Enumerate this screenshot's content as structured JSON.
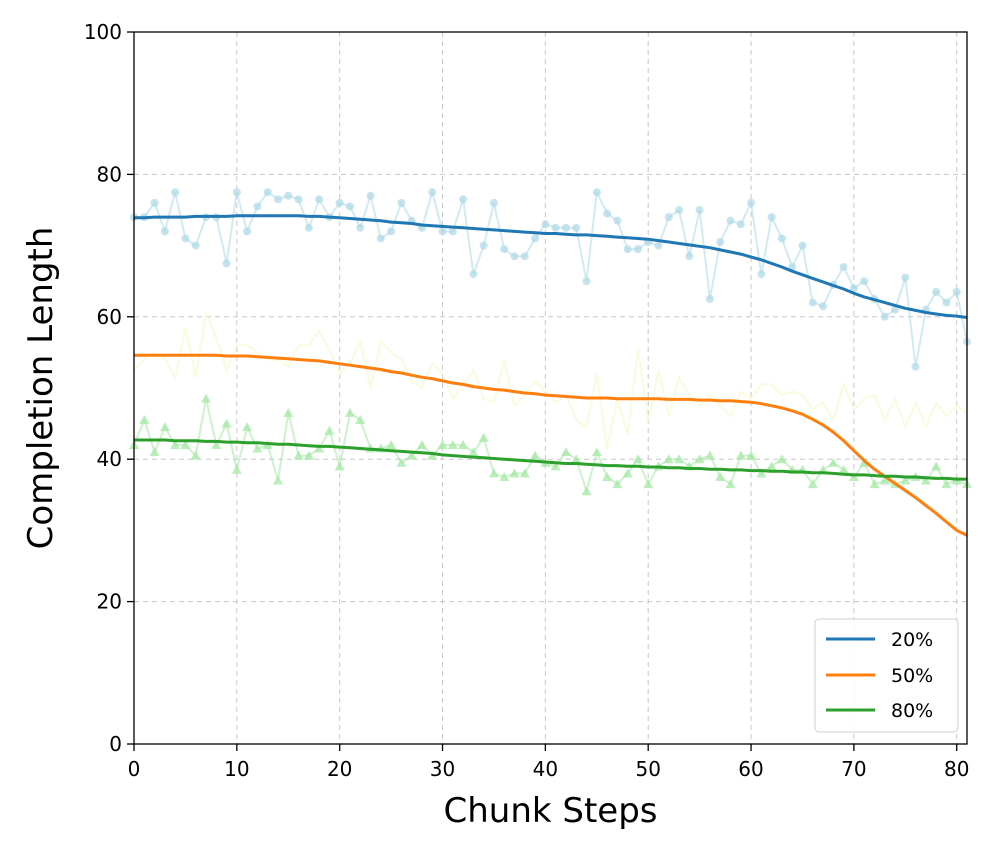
{
  "chart_data": {
    "type": "line",
    "title": "",
    "xlabel": "Chunk Steps",
    "ylabel": "Completion Length",
    "xlim": [
      0,
      81
    ],
    "ylim": [
      0,
      100
    ],
    "xticks": [
      "0",
      "10",
      "20",
      "30",
      "40",
      "50",
      "60",
      "70",
      "80"
    ],
    "yticks": [
      "0",
      "20",
      "40",
      "60",
      "80",
      "100"
    ],
    "grid": true,
    "legend_position": "lower-right",
    "x": [
      0,
      1,
      2,
      3,
      4,
      5,
      6,
      7,
      8,
      9,
      10,
      11,
      12,
      13,
      14,
      15,
      16,
      17,
      18,
      19,
      20,
      21,
      22,
      23,
      24,
      25,
      26,
      27,
      28,
      29,
      30,
      31,
      32,
      33,
      34,
      35,
      36,
      37,
      38,
      39,
      40,
      41,
      42,
      43,
      44,
      45,
      46,
      47,
      48,
      49,
      50,
      51,
      52,
      53,
      54,
      55,
      56,
      57,
      58,
      59,
      60,
      61,
      62,
      63,
      64,
      65,
      66,
      67,
      68,
      69,
      70,
      71,
      72,
      73,
      74,
      75,
      76,
      77,
      78,
      79,
      80,
      81
    ],
    "series": [
      {
        "name": "20%",
        "color": "#1f77b4",
        "raw_color": "#add8e6",
        "marker": "circle",
        "raw": [
          74,
          74,
          76,
          72,
          77.5,
          71,
          70,
          74,
          74,
          67.5,
          77.5,
          72,
          75.5,
          77.5,
          76.5,
          77,
          76.5,
          72.5,
          76.5,
          74,
          76,
          75.5,
          72.5,
          77,
          71,
          72,
          76,
          73.5,
          72.5,
          77.5,
          72,
          72,
          76.5,
          66,
          70,
          76,
          69.5,
          68.5,
          68.5,
          71,
          73,
          72.5,
          72.5,
          72.5,
          65,
          77.5,
          74.5,
          73.5,
          69.5,
          69.5,
          70.5,
          70,
          74,
          75,
          68.5,
          75,
          62.5,
          70.5,
          73.5,
          73,
          76,
          66,
          74,
          71,
          67,
          70,
          62,
          61.5,
          64.5,
          67,
          64,
          65,
          62.5,
          60,
          61,
          65.5,
          53,
          61,
          63.5,
          62,
          63.5,
          56.5
        ],
        "smooth": [
          73.9,
          73.9,
          74.0,
          74.0,
          74.0,
          74.0,
          74.1,
          74.1,
          74.1,
          74.1,
          74.2,
          74.2,
          74.2,
          74.2,
          74.2,
          74.2,
          74.2,
          74.1,
          74.1,
          74.0,
          73.9,
          73.8,
          73.7,
          73.6,
          73.5,
          73.3,
          73.2,
          73.1,
          72.9,
          72.8,
          72.7,
          72.6,
          72.5,
          72.4,
          72.3,
          72.2,
          72.1,
          72.0,
          71.9,
          71.8,
          71.7,
          71.7,
          71.6,
          71.5,
          71.5,
          71.4,
          71.3,
          71.2,
          71.1,
          71.0,
          70.9,
          70.7,
          70.5,
          70.3,
          70.1,
          69.9,
          69.7,
          69.4,
          69.1,
          68.8,
          68.4,
          68.0,
          67.5,
          67.0,
          66.4,
          65.9,
          65.4,
          64.9,
          64.4,
          63.9,
          63.3,
          62.8,
          62.4,
          62.0,
          61.6,
          61.2,
          60.9,
          60.6,
          60.4,
          60.2,
          60.1,
          59.9
        ]
      },
      {
        "name": "50%",
        "color": "#ff7f0e",
        "raw_color": "#f4f7c4",
        "marker": "none",
        "raw": [
          52.5,
          54,
          55,
          54,
          51.5,
          58.5,
          51.5,
          60.5,
          57,
          52.5,
          56,
          56,
          55,
          54,
          54,
          53,
          56,
          56,
          58,
          55.5,
          52,
          53.5,
          56.5,
          50,
          56.5,
          55,
          54,
          51,
          50,
          53.5,
          52,
          48.5,
          50.5,
          52.5,
          48.5,
          48,
          54,
          47.5,
          49,
          51,
          49.5,
          48,
          49,
          45.5,
          44.5,
          52,
          41.5,
          48.5,
          43.5,
          55.5,
          45,
          52.5,
          46,
          51.5,
          49,
          47.5,
          49,
          47.5,
          46,
          49.5,
          48.5,
          50.5,
          50.5,
          49,
          49.5,
          49,
          47,
          48,
          45.5,
          50.5,
          47,
          48.5,
          49,
          45.5,
          48.5,
          44.5,
          48,
          44.5,
          48,
          46,
          47.5,
          46.5
        ],
        "smooth": [
          54.6,
          54.6,
          54.6,
          54.6,
          54.6,
          54.6,
          54.6,
          54.6,
          54.6,
          54.5,
          54.5,
          54.5,
          54.4,
          54.3,
          54.2,
          54.1,
          54.0,
          53.9,
          53.8,
          53.6,
          53.4,
          53.2,
          53.0,
          52.8,
          52.6,
          52.3,
          52.1,
          51.8,
          51.5,
          51.3,
          51.0,
          50.7,
          50.5,
          50.2,
          50.0,
          49.8,
          49.7,
          49.5,
          49.3,
          49.2,
          49.0,
          48.9,
          48.8,
          48.7,
          48.6,
          48.6,
          48.6,
          48.5,
          48.5,
          48.5,
          48.5,
          48.5,
          48.4,
          48.4,
          48.4,
          48.3,
          48.3,
          48.2,
          48.2,
          48.1,
          48.0,
          47.8,
          47.5,
          47.2,
          46.8,
          46.3,
          45.6,
          44.8,
          43.8,
          42.6,
          41.2,
          39.8,
          38.6,
          37.6,
          36.6,
          35.6,
          34.6,
          33.5,
          32.4,
          31.2,
          30.0,
          29.3
        ]
      },
      {
        "name": "80%",
        "color": "#2ca02c",
        "raw_color": "#a4e8a4",
        "marker": "triangle",
        "raw": [
          42,
          45.5,
          41,
          44.5,
          42,
          42,
          40.5,
          48.5,
          42,
          45,
          38.5,
          44.5,
          41.5,
          42,
          37,
          46.5,
          40.5,
          40.5,
          41.5,
          44,
          39,
          46.5,
          45.5,
          41.5,
          41.5,
          42,
          39.5,
          40.5,
          42,
          40.5,
          42,
          42,
          42,
          41,
          43,
          38,
          37.5,
          38,
          38,
          40.5,
          39.5,
          39,
          41,
          40,
          35.5,
          41,
          37.5,
          36.5,
          38,
          40,
          36.5,
          39,
          40,
          40,
          39,
          40,
          40.5,
          37.5,
          36.5,
          40.5,
          40.5,
          38,
          39,
          40,
          38.5,
          38.5,
          36.5,
          38.5,
          39.5,
          38.5,
          37.5,
          39.5,
          36.5,
          37,
          36.5,
          37,
          37.5,
          37,
          39,
          36.5,
          37,
          36.5
        ],
        "smooth": [
          42.7,
          42.7,
          42.7,
          42.7,
          42.6,
          42.6,
          42.6,
          42.5,
          42.5,
          42.4,
          42.4,
          42.3,
          42.3,
          42.2,
          42.1,
          42.1,
          42.0,
          41.9,
          41.8,
          41.8,
          41.7,
          41.6,
          41.5,
          41.4,
          41.3,
          41.2,
          41.1,
          41.0,
          40.9,
          40.8,
          40.6,
          40.5,
          40.4,
          40.3,
          40.2,
          40.1,
          40.0,
          39.9,
          39.8,
          39.7,
          39.6,
          39.5,
          39.4,
          39.4,
          39.3,
          39.2,
          39.1,
          39.1,
          39.0,
          39.0,
          38.9,
          38.9,
          38.8,
          38.8,
          38.7,
          38.7,
          38.6,
          38.6,
          38.5,
          38.5,
          38.4,
          38.4,
          38.3,
          38.3,
          38.2,
          38.2,
          38.1,
          38.1,
          38.0,
          37.9,
          37.8,
          37.8,
          37.7,
          37.6,
          37.6,
          37.5,
          37.5,
          37.4,
          37.3,
          37.3,
          37.2,
          37.2
        ]
      }
    ]
  }
}
